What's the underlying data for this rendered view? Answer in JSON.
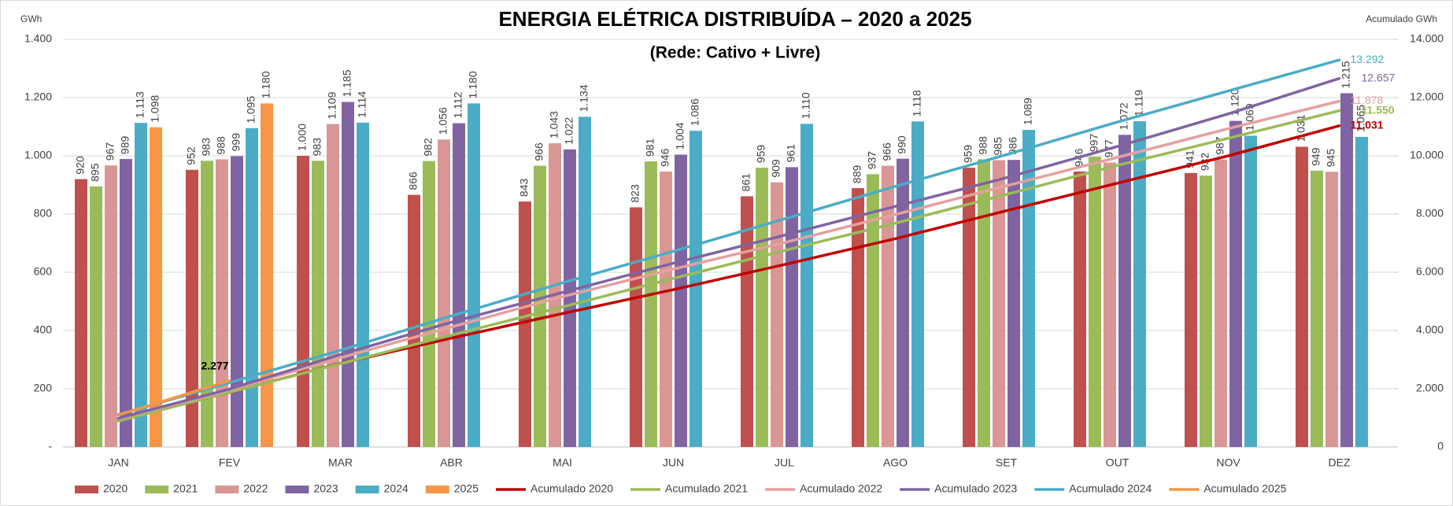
{
  "chart_data": {
    "type": "bar",
    "title": "ENERGIA ELÉTRICA DISTRIBUÍDA – 2020 a 2025",
    "subtitle": "(Rede: Cativo + Livre)",
    "y_label": "GWh",
    "y2_label": "Acumulado GWh",
    "categories": [
      "JAN",
      "FEV",
      "MAR",
      "ABR",
      "MAI",
      "JUN",
      "JUL",
      "AGO",
      "SET",
      "OUT",
      "NOV",
      "DEZ"
    ],
    "ylim": [
      0,
      1400
    ],
    "yticks": [
      {
        "value": 0,
        "label": "-"
      },
      {
        "value": 200,
        "label": "200"
      },
      {
        "value": 400,
        "label": "400"
      },
      {
        "value": 600,
        "label": "600"
      },
      {
        "value": 800,
        "label": "800"
      },
      {
        "value": 1000,
        "label": "1.000"
      },
      {
        "value": 1200,
        "label": "1.200"
      },
      {
        "value": 1400,
        "label": "1.400"
      }
    ],
    "y2lim": [
      0,
      14000
    ],
    "y2ticks": [
      0,
      {
        "value": 2000,
        "label": "2.000"
      },
      {
        "value": 4000,
        "label": "4.000"
      },
      {
        "value": 6000,
        "label": "6.000"
      },
      {
        "value": 8000,
        "label": "8.000"
      },
      {
        "value": 10000,
        "label": "10.000"
      },
      {
        "value": 12000,
        "label": "12.000"
      },
      {
        "value": 14000,
        "label": "14.000"
      }
    ],
    "grid": true,
    "legend": "bottom",
    "series": [
      {
        "name": "2020",
        "type": "bar",
        "color": "#c0504d",
        "values": [
          920,
          952,
          1000,
          866,
          843,
          823,
          861,
          889,
          959,
          946,
          941,
          1031
        ],
        "value_labels": [
          "920",
          "952",
          "1.000",
          "866",
          "843",
          "823",
          "861",
          "889",
          "959",
          "946",
          "941",
          "1.031"
        ]
      },
      {
        "name": "2021",
        "type": "bar",
        "color": "#9bbb59",
        "values": [
          895,
          983,
          983,
          982,
          966,
          981,
          959,
          937,
          988,
          997,
          932,
          949
        ],
        "value_labels": [
          "895",
          "983",
          "983",
          "982",
          "966",
          "981",
          "959",
          "937",
          "988",
          "997",
          "932",
          "949"
        ]
      },
      {
        "name": "2022",
        "type": "bar",
        "color": "#d99694",
        "values": [
          967,
          988,
          1109,
          1056,
          1043,
          946,
          909,
          966,
          985,
          977,
          987,
          945
        ],
        "value_labels": [
          "967",
          "988",
          "1.109",
          "1.056",
          "1.043",
          "946",
          "909",
          "966",
          "985",
          "977",
          "987",
          "945"
        ]
      },
      {
        "name": "2023",
        "type": "bar",
        "color": "#8064a2",
        "values": [
          989,
          999,
          1185,
          1112,
          1022,
          1004,
          961,
          990,
          986,
          1072,
          1120,
          1215
        ],
        "value_labels": [
          "989",
          "999",
          "1.185",
          "1.112",
          "1.022",
          "1.004",
          "961",
          "990",
          "986",
          "1.072",
          "1.120",
          "1.215"
        ]
      },
      {
        "name": "2024",
        "type": "bar",
        "color": "#4bacc6",
        "values": [
          1113,
          1095,
          1114,
          1180,
          1134,
          1086,
          1110,
          1118,
          1089,
          1119,
          1069,
          1065
        ],
        "value_labels": [
          "1.113",
          "1.095",
          "1.114",
          "1.180",
          "1.134",
          "1.086",
          "1.110",
          "1.118",
          "1.089",
          "1.119",
          "1.069",
          "1.065"
        ]
      },
      {
        "name": "2025",
        "type": "bar",
        "color": "#f79646",
        "values": [
          1098,
          1180,
          null,
          null,
          null,
          null,
          null,
          null,
          null,
          null,
          null,
          null
        ],
        "value_labels": [
          "1.098",
          "1.180",
          null,
          null,
          null,
          null,
          null,
          null,
          null,
          null,
          null,
          null
        ]
      },
      {
        "name": "Acumulado 2020",
        "type": "line",
        "axis": "y2",
        "color": "#c00000",
        "values": [
          920,
          1872,
          2872,
          3738,
          4581,
          5404,
          6265,
          7154,
          8113,
          9059,
          10000,
          11031
        ],
        "value_labels": [
          null,
          null,
          null,
          null,
          null,
          null,
          null,
          null,
          null,
          null,
          null,
          "11.031"
        ]
      },
      {
        "name": "Acumulado 2021",
        "type": "line",
        "axis": "y2",
        "color": "#9bbb59",
        "values": [
          895,
          1878,
          2861,
          3843,
          4809,
          5790,
          6749,
          7686,
          8674,
          9671,
          10603,
          11550
        ],
        "value_labels": [
          null,
          null,
          null,
          null,
          null,
          null,
          null,
          null,
          null,
          null,
          null,
          "11.550"
        ]
      },
      {
        "name": "Acumulado 2022",
        "type": "line",
        "axis": "y2",
        "color": "#e6a0a0",
        "values": [
          967,
          1955,
          3064,
          4120,
          5163,
          6109,
          7018,
          7984,
          8969,
          9946,
          10933,
          11878
        ],
        "value_labels": [
          null,
          null,
          null,
          null,
          null,
          null,
          null,
          null,
          null,
          null,
          null,
          "11.878"
        ]
      },
      {
        "name": "Acumulado 2023",
        "type": "line",
        "axis": "y2",
        "color": "#8064a2",
        "values": [
          989,
          1988,
          3173,
          4285,
          5307,
          6311,
          7272,
          8262,
          9248,
          10320,
          11440,
          12657
        ],
        "value_labels": [
          null,
          null,
          null,
          null,
          null,
          null,
          null,
          null,
          null,
          null,
          null,
          "12.657"
        ]
      },
      {
        "name": "Acumulado 2024",
        "type": "line",
        "axis": "y2",
        "color": "#4bacc6",
        "values": [
          1113,
          2208,
          3322,
          4502,
          5636,
          6722,
          7832,
          8950,
          10039,
          11158,
          12227,
          13292
        ],
        "value_labels": [
          null,
          null,
          null,
          null,
          null,
          null,
          null,
          null,
          null,
          null,
          null,
          "13.292"
        ]
      },
      {
        "name": "Acumulado 2025",
        "type": "line",
        "axis": "y2",
        "color": "#f79646",
        "values": [
          1098,
          2277,
          null,
          null,
          null,
          null,
          null,
          null,
          null,
          null,
          null,
          null
        ],
        "value_labels": [
          null,
          "2.277",
          null,
          null,
          null,
          null,
          null,
          null,
          null,
          null,
          null,
          null
        ]
      }
    ]
  }
}
